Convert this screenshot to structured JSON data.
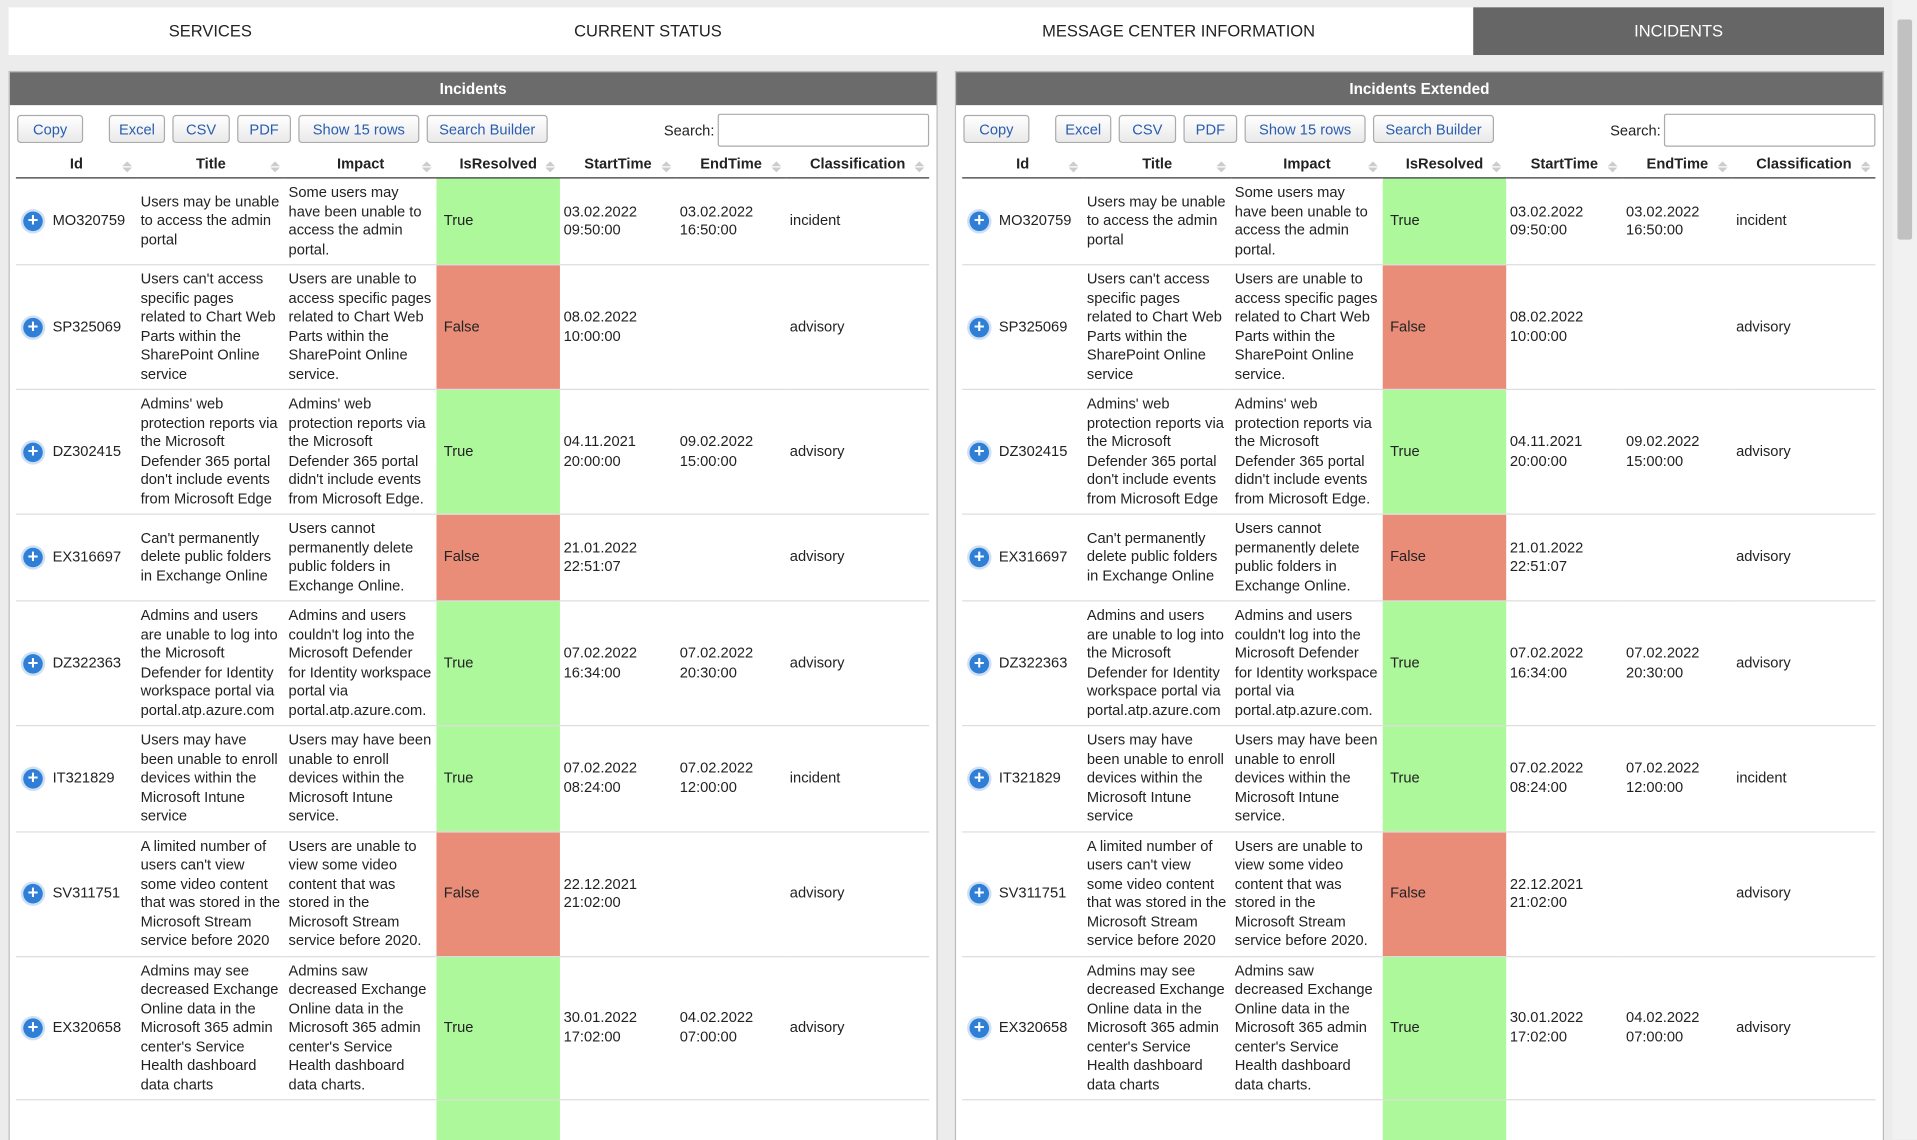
{
  "tabs": [
    "SERVICES",
    "CURRENT STATUS",
    "MESSAGE CENTER INFORMATION",
    "INCIDENTS"
  ],
  "panels": [
    "Incidents",
    "Incidents Extended"
  ],
  "table": {
    "buttons": [
      "Copy",
      "Excel",
      "CSV",
      "PDF",
      "Show 15 rows",
      "Search Builder"
    ],
    "search_label": "Search:",
    "columns": [
      "Id",
      "Title",
      "Impact",
      "IsResolved",
      "StartTime",
      "EndTime",
      "Classification"
    ],
    "resolved_colors": {
      "True": "#adf89b",
      "False": "#e98d79"
    },
    "rows": [
      [
        "MO320759",
        "Users may be unable to access the admin portal",
        "Some users may have been unable to access the admin portal.",
        "True",
        "03.02.2022 09:50:00",
        "03.02.2022 16:50:00",
        "incident"
      ],
      [
        "SP325069",
        "Users can't access specific pages related to Chart Web Parts within the SharePoint Online service",
        "Users are unable to access specific pages related to Chart Web Parts within the SharePoint Online service.",
        "False",
        "08.02.2022 10:00:00",
        null,
        "advisory"
      ],
      [
        "DZ302415",
        "Admins' web protection reports via the Microsoft Defender 365 portal don't include events from Microsoft Edge",
        "Admins' web protection reports via the Microsoft Defender 365 portal didn't include events from Microsoft Edge.",
        "True",
        "04.11.2021 20:00:00",
        "09.02.2022 15:00:00",
        "advisory"
      ],
      [
        "EX316697",
        "Can't permanently delete public folders in Exchange Online",
        "Users cannot permanently delete public folders in Exchange Online.",
        "False",
        "21.01.2022 22:51:07",
        null,
        "advisory"
      ],
      [
        "DZ322363",
        "Admins and users are unable to log into the Microsoft Defender for Identity workspace portal via portal.atp.azure.com",
        "Admins and users couldn't log into the Microsoft Defender for Identity workspace portal via portal.atp.azure.com.",
        "True",
        "07.02.2022 16:34:00",
        "07.02.2022 20:30:00",
        "advisory"
      ],
      [
        "IT321829",
        "Users may have been unable to enroll devices within the Microsoft Intune service",
        "Users may have been unable to enroll devices within the Microsoft Intune service.",
        "True",
        "07.02.2022 08:24:00",
        "07.02.2022 12:00:00",
        "incident"
      ],
      [
        "SV311751",
        "A limited number of users can't view some video content that was stored in the Microsoft Stream service before 2020",
        "Users are unable to view some video content that was stored in the Microsoft Stream service before 2020.",
        "False",
        "22.12.2021 21:02:00",
        null,
        "advisory"
      ],
      [
        "EX320658",
        "Admins may see decreased Exchange Online data in the Microsoft 365 admin center's Service Health dashboard data charts",
        "Admins saw decreased Exchange Online data in the Microsoft 365 admin center's Service Health dashboard data charts.",
        "True",
        "30.01.2022 17:02:00",
        "04.02.2022 07:00:00",
        "advisory"
      ]
    ]
  }
}
